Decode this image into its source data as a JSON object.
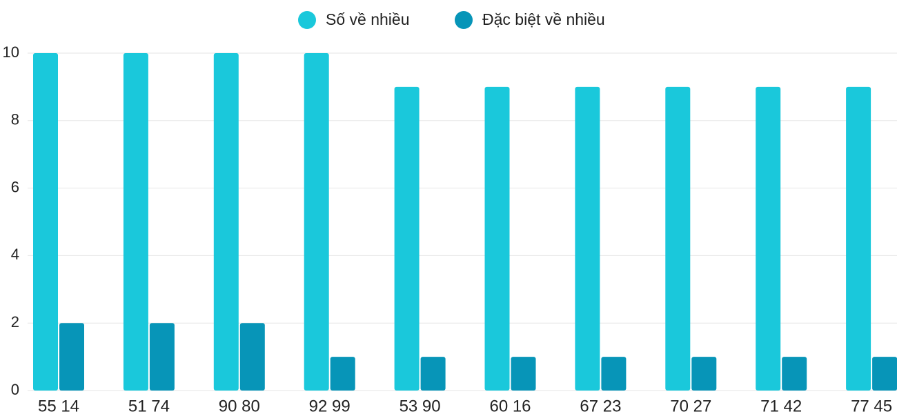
{
  "chart_data": {
    "type": "bar",
    "categories": [
      "55 14",
      "51 74",
      "90 80",
      "92 99",
      "53 90",
      "60 16",
      "67 23",
      "70 27",
      "71 42",
      "77 45"
    ],
    "series": [
      {
        "name": "Số về nhiều",
        "color": "#1ac8db",
        "values": [
          10,
          10,
          10,
          10,
          9,
          9,
          9,
          9,
          9,
          9
        ]
      },
      {
        "name": "Đặc biệt về nhiều",
        "color": "#0795b8",
        "values": [
          2,
          2,
          2,
          1,
          1,
          1,
          1,
          1,
          1,
          1
        ]
      }
    ],
    "ylim": [
      0,
      10
    ],
    "yticks": [
      0,
      2,
      4,
      6,
      8,
      10
    ],
    "grid": true,
    "legend": "top"
  }
}
